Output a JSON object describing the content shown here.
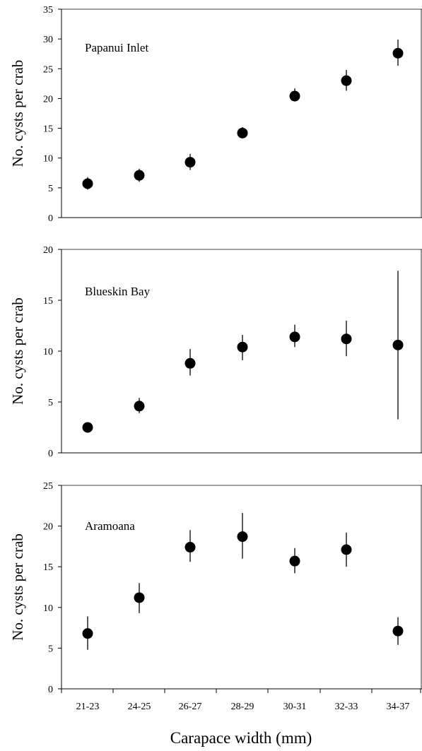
{
  "chart_data": [
    {
      "type": "scatter",
      "title": "Papanui Inlet",
      "ylabel": "No. cysts per crab",
      "xlabel": "",
      "categories": [
        "21-23",
        "24-25",
        "26-27",
        "28-29",
        "30-31",
        "32-33",
        "34-37"
      ],
      "values": [
        5.7,
        7.1,
        9.3,
        14.2,
        20.4,
        23.0,
        27.6
      ],
      "error_low": [
        4.7,
        6.0,
        8.0,
        13.4,
        19.5,
        21.3,
        25.5
      ],
      "error_high": [
        6.8,
        8.2,
        10.7,
        15.2,
        21.7,
        24.8,
        29.9
      ],
      "ylim": [
        0,
        35
      ],
      "yticks": [
        0,
        5,
        10,
        15,
        20,
        25,
        30,
        35
      ],
      "grid": false
    },
    {
      "type": "scatter",
      "title": "Blueskin Bay",
      "ylabel": "No. cysts per crab",
      "xlabel": "",
      "categories": [
        "21-23",
        "24-25",
        "26-27",
        "28-29",
        "30-31",
        "32-33",
        "34-37"
      ],
      "values": [
        2.5,
        4.6,
        8.8,
        10.4,
        11.4,
        11.2,
        10.6
      ],
      "error_low": [
        2.2,
        3.9,
        7.6,
        9.1,
        10.4,
        9.5,
        3.3
      ],
      "error_high": [
        2.8,
        5.4,
        10.2,
        11.6,
        12.6,
        13.0,
        17.9
      ],
      "ylim": [
        0,
        20
      ],
      "yticks": [
        0,
        5,
        10,
        15,
        20
      ],
      "grid": false
    },
    {
      "type": "scatter",
      "title": "Aramoana",
      "ylabel": "No. cysts per crab",
      "xlabel": "Carapace width (mm)",
      "categories": [
        "21-23",
        "24-25",
        "26-27",
        "28-29",
        "30-31",
        "32-33",
        "34-37"
      ],
      "values": [
        6.8,
        11.2,
        17.4,
        18.7,
        15.7,
        17.1,
        7.1
      ],
      "error_low": [
        4.8,
        9.3,
        15.6,
        16.0,
        14.2,
        15.0,
        5.4
      ],
      "error_high": [
        8.9,
        13.0,
        19.5,
        21.6,
        17.3,
        19.2,
        8.8
      ],
      "ylim": [
        0,
        25
      ],
      "yticks": [
        0,
        5,
        10,
        15,
        20,
        25
      ],
      "grid": false
    }
  ]
}
